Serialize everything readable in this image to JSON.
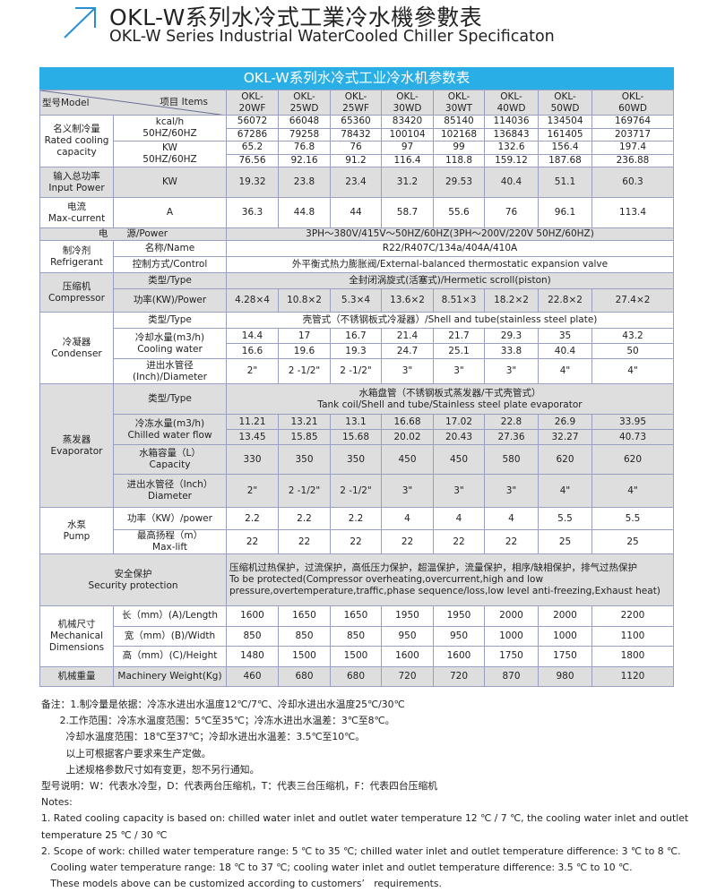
{
  "header": {
    "title_cn": "OKL-W系列水冷式工業冷水機參數表",
    "title_en": "OKL-W Series Industrial WaterCooled Chiller Specificaton",
    "icon": "arrow-up-right-icon",
    "accent_color": "#2aaee6"
  },
  "table": {
    "title": "OKL-W系列水冷式工业冷水机参数表",
    "model_label": "型号Model",
    "items_label": "项目 Items",
    "models": [
      "OKL-\n20WF",
      "OKL-\n25WD",
      "OKL-\n25WF",
      "OKL-\n30WD",
      "OKL-\n30WT",
      "OKL-\n40WD",
      "OKL-\n50WD",
      "OKL-\n60WD"
    ],
    "sections": [
      {
        "group": "名义制冷量\nRated cooling\ncapacity",
        "rows": [
          {
            "item": "kcal/h\n50HZ/60HZ",
            "values": [
              [
                "56072",
                "66048",
                "65360",
                "83420",
                "85140",
                "114036",
                "134504",
                "169764"
              ],
              [
                "67286",
                "79258",
                "78432",
                "100104",
                "102168",
                "136843",
                "161405",
                "203717"
              ]
            ]
          },
          {
            "item": "KW\n50HZ/60HZ",
            "values": [
              [
                "65.2",
                "76.8",
                "76",
                "97",
                "99",
                "132.6",
                "156.4",
                "197.4"
              ],
              [
                "76.56",
                "92.16",
                "91.2",
                "116.4",
                "118.8",
                "159.12",
                "187.68",
                "236.88"
              ]
            ]
          }
        ]
      },
      {
        "group": "输入总功率\nInput Power",
        "rows": [
          {
            "item": "KW",
            "values": [
              [
                "19.32",
                "23.8",
                "23.4",
                "31.2",
                "29.53",
                "40.4",
                "51.1",
                "60.3"
              ]
            ]
          }
        ]
      },
      {
        "group": "电流\nMax-current",
        "rows": [
          {
            "item": "A",
            "values": [
              [
                "36.3",
                "44.8",
                "44",
                "58.7",
                "55.6",
                "76",
                "96.1",
                "113.4"
              ]
            ]
          }
        ]
      },
      {
        "group": "电　　源/Power",
        "merged": true,
        "rows": [
          {
            "span": "3PH～380V/415V～50HZ/60HZ(3PH～200V/220V   50HZ/60HZ)"
          }
        ]
      },
      {
        "group": "制冷剂\nRefrigerant",
        "rows": [
          {
            "item": "名称/Name",
            "span": "R22/R407C/134a/404A/410A"
          },
          {
            "item": "控制方式/Control",
            "span": "外平衡式热力膨胀阀/External-balanced thermostatic expansion valve"
          }
        ]
      },
      {
        "group": "压缩机\nCompressor",
        "rows": [
          {
            "item": "类型/Type",
            "span": "全封闭涡旋式(活塞式)/Hermetic scroll(piston)"
          },
          {
            "item": "功率(KW)/Power",
            "values": [
              [
                "4.28×4",
                "10.8×2",
                "5.3×4",
                "13.6×2",
                "8.51×3",
                "18.2×2",
                "22.8×2",
                "27.4×2"
              ]
            ]
          }
        ]
      },
      {
        "group": "冷凝器\nCondenser",
        "rows": [
          {
            "item": "类型/Type",
            "span": "壳管式（不锈钢板式冷凝器）/Shell and tube(stainless steel plate)"
          },
          {
            "item": "冷却水量(m3/h)\nCooling water",
            "values": [
              [
                "14.4",
                "17",
                "16.7",
                "21.4",
                "21.7",
                "29.3",
                "35",
                "43.2"
              ],
              [
                "16.6",
                "19.6",
                "19.3",
                "24.7",
                "25.1",
                "33.8",
                "40.4",
                "50"
              ]
            ]
          },
          {
            "item": "进出水管径\n(Inch)/Diameter",
            "values": [
              [
                "2\"",
                "2 -1/2\"",
                "2 -1/2\"",
                "3\"",
                "3\"",
                "3\"",
                "4\"",
                "4\""
              ]
            ]
          }
        ]
      },
      {
        "group": "蒸发器\nEvaporator",
        "rows": [
          {
            "item": "类型/Type",
            "span": "水箱盘管（不锈钢板式蒸发器/干式壳管式）\nTank coil/Shell and tube/Stainless steel plate evaporator"
          },
          {
            "item": "冷冻水量(m3/h)\nChilled water flow",
            "values": [
              [
                "11.21",
                "13.21",
                "13.1",
                "16.68",
                "17.02",
                "22.8",
                "26.9",
                "33.95"
              ],
              [
                "13.45",
                "15.85",
                "15.68",
                "20.02",
                "20.43",
                "27.36",
                "32.27",
                "40.73"
              ]
            ]
          },
          {
            "item": "水箱容量（L）\nCapacity",
            "values": [
              [
                "330",
                "350",
                "350",
                "450",
                "450",
                "580",
                "620",
                "620"
              ]
            ]
          },
          {
            "item": "进出水管径（Inch）\nDiameter",
            "values": [
              [
                "2\"",
                "2 -1/2\"",
                "2 -1/2\"",
                "3\"",
                "3\"",
                "3\"",
                "4\"",
                "4\""
              ]
            ]
          }
        ]
      },
      {
        "group": "水泵\nPump",
        "rows": [
          {
            "item": "功率（KW）/power",
            "values": [
              [
                "2.2",
                "2.2",
                "2.2",
                "4",
                "4",
                "4",
                "5.5",
                "5.5"
              ]
            ]
          },
          {
            "item": "最高扬程（m）\nMax-lift",
            "values": [
              [
                "22",
                "22",
                "22",
                "22",
                "22",
                "22",
                "25",
                "25"
              ]
            ]
          }
        ]
      },
      {
        "group": "安全保护\nSecurity protection",
        "merged": true,
        "rows": [
          {
            "span": "压缩机过热保护，过流保护，高低压力保护，超温保护，流量保护，相序/缺相保护，排气过热保护\nTo be protected(Compressor overheating,overcurrent,high and low\npressure,overtemperature,traffic,phase sequence/loss,low level anti-freezing,Exhaust heat)"
          }
        ]
      },
      {
        "group": "机械尺寸\nMechanical\nDimensions",
        "rows": [
          {
            "item": "长（mm）(A)/Length",
            "values": [
              [
                "1600",
                "1650",
                "1650",
                "1950",
                "1950",
                "2000",
                "2000",
                "2200"
              ]
            ]
          },
          {
            "item": "宽（mm）(B)/Width",
            "values": [
              [
                "850",
                "850",
                "850",
                "950",
                "950",
                "1000",
                "1000",
                "1100"
              ]
            ]
          },
          {
            "item": "高（mm）(C)/Height",
            "values": [
              [
                "1480",
                "1500",
                "1500",
                "1600",
                "1600",
                "1750",
                "1750",
                "1800"
              ]
            ]
          }
        ]
      },
      {
        "group": "机械重量",
        "rows": [
          {
            "item": "Machinery Weight(Kg)",
            "values": [
              [
                "460",
                "680",
                "680",
                "720",
                "720",
                "870",
                "980",
                "1120"
              ]
            ]
          }
        ]
      }
    ]
  },
  "notes": [
    "备注：1.制冷量是依据：冷冻水进出水温度12℃/7℃、冷却水进出水温度25℃/30℃",
    "      2.工作范围：冷冻水温度范围：5℃至35℃；冷冻水进出水温差：3℃至8℃。",
    "        冷却水温度范围：18℃至37℃；冷却水进出水温差：3.5℃至10℃。",
    "        以上可根据客户要求来生产定做。",
    "        上述规格参数尺寸如有变更，恕不另行通知。",
    "型号说明：W：代表水冷型，D：代表两台压缩机，T：代表三台压缩机，F：代表四台压缩机",
    "Notes:",
    "1. Rated cooling capacity is based on: chilled water inlet and outlet water temperature 12 ℃ / 7 ℃, the cooling water inlet and outlet",
    "temperature 25 ℃ / 30 ℃",
    "2. Scope of work: chilled water temperature range: 5 ℃ to 35 ℃; chilled water inlet and outlet temperature difference: 3 ℃ to 8 ℃.",
    "   Cooling water temperature range: 18 ℃ to 37 ℃; cooling water inlet and outlet temperature difference: 3.5 ℃ to 10 ℃.",
    "   These models above can be customized according to customers’   requirements."
  ]
}
